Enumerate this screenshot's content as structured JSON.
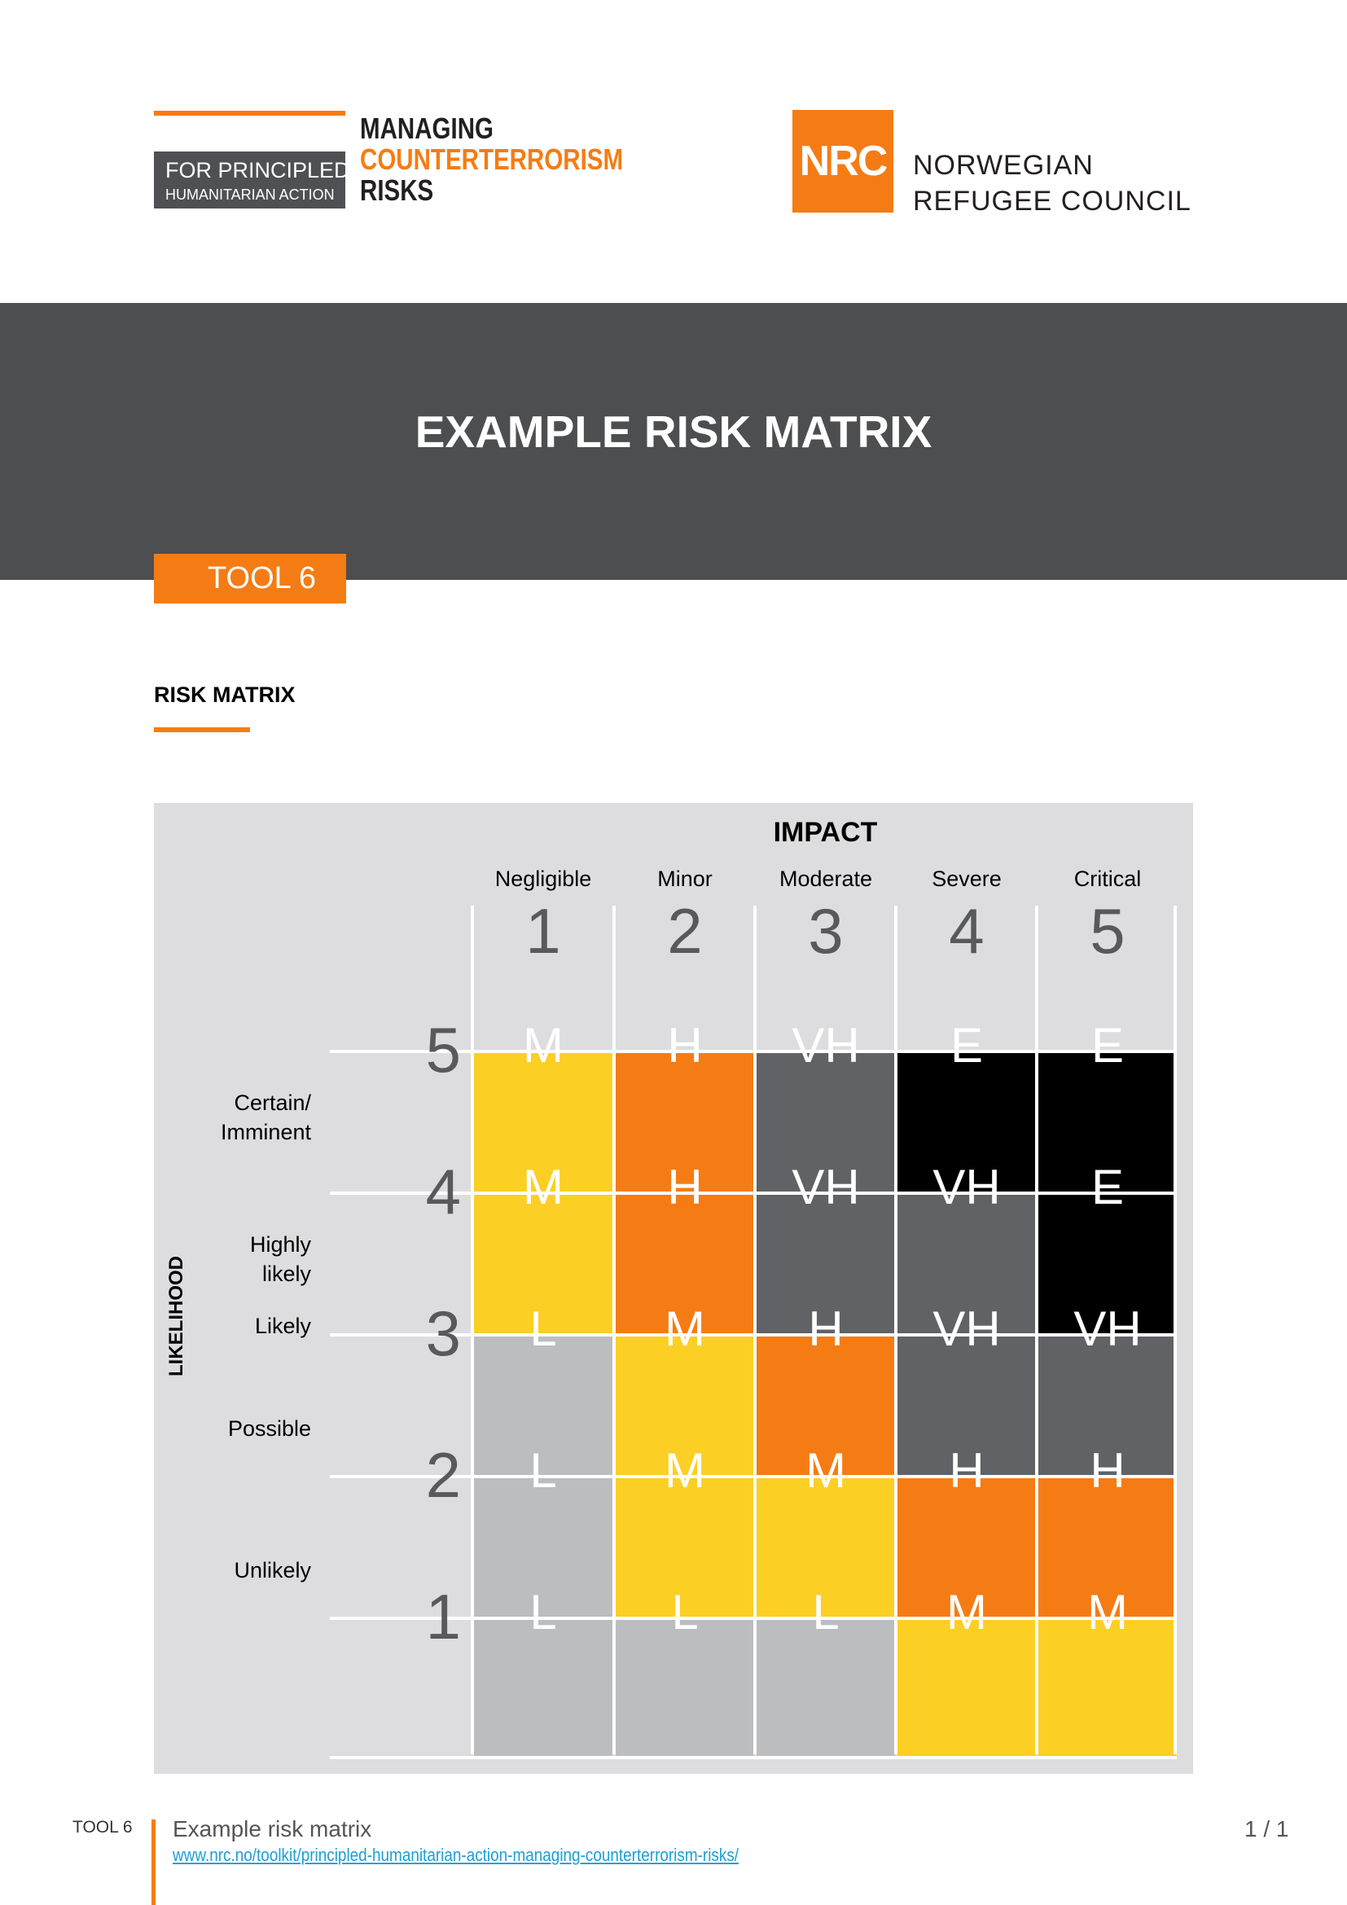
{
  "header": {
    "toolkit_logo": {
      "box_line1": "FOR PRINCIPLED",
      "box_line2": "HUMANITARIAN ACTION",
      "title_line1": "MANAGING",
      "title_line2": "COUNTERTERRORISM",
      "title_line3": "RISKS"
    },
    "nrc_logo": {
      "mark": "NRC",
      "name_line1": "NORWEGIAN",
      "name_line2": "REFUGEE COUNCIL"
    }
  },
  "title": "EXAMPLE RISK MATRIX",
  "tool_tag": "TOOL 6",
  "section_heading": "RISK MATRIX",
  "matrix": {
    "impact_title": "IMPACT",
    "likelihood_title": "LIKELIHOOD",
    "columns": [
      {
        "name": "Negligible",
        "number": "1"
      },
      {
        "name": "Minor",
        "number": "2"
      },
      {
        "name": "Moderate",
        "number": "3"
      },
      {
        "name": "Severe",
        "number": "4"
      },
      {
        "name": "Critical",
        "number": "5"
      }
    ],
    "rows": [
      {
        "number": "5",
        "label": "Certain/ Imminent",
        "cells": [
          "M",
          "H",
          "VH",
          "E",
          "E"
        ]
      },
      {
        "number": "4",
        "label": "Highly likely",
        "cells": [
          "M",
          "H",
          "VH",
          "VH",
          "E"
        ]
      },
      {
        "number": "3",
        "label": "Likely",
        "cells": [
          "L",
          "M",
          "H",
          "VH",
          "VH"
        ]
      },
      {
        "number": "2",
        "label": "Possible",
        "cells": [
          "L",
          "M",
          "M",
          "H",
          "H"
        ]
      },
      {
        "number": "1",
        "label": "Unlikely",
        "cells": [
          "L",
          "L",
          "L",
          "M",
          "M"
        ]
      }
    ],
    "level_colors": {
      "L": "#bcbdbf",
      "M": "#fccf25",
      "H": "#f57c14",
      "VH": "#616265",
      "E": "#000000"
    }
  },
  "footer": {
    "tool": "TOOL 6",
    "title": "Example risk matrix",
    "link": "www.nrc.no/toolkit/principled-humanitarian-action-managing-counterterrorism-risks/",
    "page": "1 / 1"
  }
}
